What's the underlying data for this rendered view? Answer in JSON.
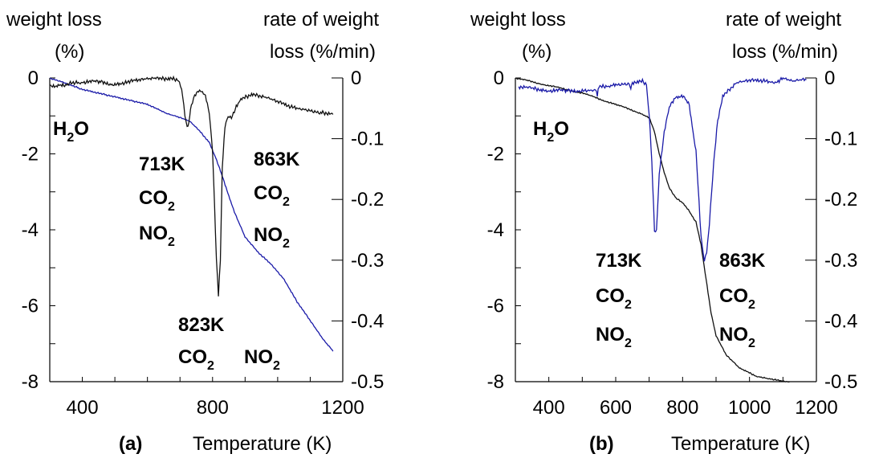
{
  "chart_data": [
    {
      "panel": "(a)",
      "type": "line",
      "xlabel": "Temperature (K)",
      "ylabel_left": [
        "weight loss",
        "(%)"
      ],
      "ylabel_right": [
        "rate of weight",
        "loss (%/min)"
      ],
      "xlim": [
        300,
        1200
      ],
      "xticks": [
        400,
        800,
        1200
      ],
      "ylim_left": [
        -8,
        0
      ],
      "yticks_left": [
        0,
        -2,
        -4,
        -6,
        -8
      ],
      "ylim_right": [
        -0.5,
        0
      ],
      "yticks_right": [
        "0",
        "-0.1",
        "-0.2",
        "-0.3",
        "-0.4",
        "-0.5"
      ],
      "series": [
        {
          "axis": "left",
          "color": "#1a1aa8",
          "points": [
            [
              300,
              0
            ],
            [
              340,
              -0.1
            ],
            [
              400,
              -0.3
            ],
            [
              500,
              -0.5
            ],
            [
              600,
              -0.7
            ],
            [
              660,
              -0.95
            ],
            [
              700,
              -1.05
            ],
            [
              730,
              -1.15
            ],
            [
              760,
              -1.4
            ],
            [
              790,
              -1.7
            ],
            [
              810,
              -2.1
            ],
            [
              830,
              -2.6
            ],
            [
              850,
              -3.1
            ],
            [
              870,
              -3.6
            ],
            [
              900,
              -4.2
            ],
            [
              940,
              -4.6
            ],
            [
              980,
              -4.9
            ],
            [
              1020,
              -5.3
            ],
            [
              1060,
              -5.9
            ],
            [
              1100,
              -6.4
            ],
            [
              1140,
              -6.9
            ],
            [
              1170,
              -7.2
            ]
          ]
        },
        {
          "axis": "right",
          "color": "#111111",
          "points": [
            [
              300,
              -0.01
            ],
            [
              320,
              -0.015
            ],
            [
              340,
              -0.012
            ],
            [
              360,
              -0.008
            ],
            [
              400,
              -0.006
            ],
            [
              450,
              -0.007
            ],
            [
              500,
              -0.01
            ],
            [
              560,
              -0.005
            ],
            [
              620,
              -0.002
            ],
            [
              680,
              -0.001
            ],
            [
              695,
              -0.003
            ],
            [
              705,
              -0.02
            ],
            [
              715,
              -0.06
            ],
            [
              722,
              -0.08
            ],
            [
              727,
              -0.075
            ],
            [
              735,
              -0.045
            ],
            [
              745,
              -0.03
            ],
            [
              760,
              -0.022
            ],
            [
              778,
              -0.03
            ],
            [
              790,
              -0.06
            ],
            [
              800,
              -0.12
            ],
            [
              812,
              -0.3
            ],
            [
              818,
              -0.36
            ],
            [
              824,
              -0.3
            ],
            [
              830,
              -0.15
            ],
            [
              838,
              -0.08
            ],
            [
              848,
              -0.065
            ],
            [
              858,
              -0.065
            ],
            [
              870,
              -0.05
            ],
            [
              890,
              -0.035
            ],
            [
              920,
              -0.027
            ],
            [
              960,
              -0.033
            ],
            [
              1000,
              -0.04
            ],
            [
              1040,
              -0.047
            ],
            [
              1080,
              -0.05
            ],
            [
              1120,
              -0.055
            ],
            [
              1160,
              -0.06
            ],
            [
              1170,
              -0.06
            ]
          ]
        }
      ],
      "annotations": [
        {
          "id": "h2o",
          "lines": [
            "H",
            "2",
            "O"
          ]
        },
        {
          "id": "peak713",
          "lines": [
            "713K",
            "CO2",
            "NO2"
          ]
        },
        {
          "id": "peak863",
          "lines": [
            "863K",
            "CO2",
            "NO2"
          ]
        },
        {
          "id": "peak823",
          "lines": [
            "823K",
            "CO2 NO2"
          ]
        }
      ]
    },
    {
      "panel": "(b)",
      "type": "line",
      "xlabel": "Temperature (K)",
      "ylabel_left": [
        "weight loss",
        "(%)"
      ],
      "ylabel_right": [
        "rate of weight",
        "loss (%/min)"
      ],
      "xlim": [
        300,
        1200
      ],
      "xticks": [
        400,
        600,
        800,
        1000,
        1200
      ],
      "ylim_left": [
        -8,
        0
      ],
      "yticks_left": [
        0,
        -2,
        -4,
        -6,
        -8
      ],
      "ylim_right": [
        -0.5,
        0
      ],
      "yticks_right": [
        "0",
        "-0.1",
        "-0.2",
        "-0.3",
        "-0.4",
        "-0.5"
      ],
      "series": [
        {
          "axis": "left",
          "color": "#111111",
          "points": [
            [
              300,
              0
            ],
            [
              350,
              -0.1
            ],
            [
              400,
              -0.2
            ],
            [
              450,
              -0.3
            ],
            [
              500,
              -0.4
            ],
            [
              550,
              -0.55
            ],
            [
              600,
              -0.7
            ],
            [
              650,
              -0.85
            ],
            [
              680,
              -0.95
            ],
            [
              700,
              -1.05
            ],
            [
              715,
              -1.4
            ],
            [
              730,
              -2.0
            ],
            [
              745,
              -2.5
            ],
            [
              760,
              -2.9
            ],
            [
              780,
              -3.15
            ],
            [
              800,
              -3.3
            ],
            [
              820,
              -3.5
            ],
            [
              840,
              -3.8
            ],
            [
              855,
              -4.4
            ],
            [
              870,
              -5.3
            ],
            [
              885,
              -6.2
            ],
            [
              900,
              -6.8
            ],
            [
              930,
              -7.3
            ],
            [
              970,
              -7.65
            ],
            [
              1020,
              -7.85
            ],
            [
              1080,
              -7.95
            ],
            [
              1120,
              -8.0
            ]
          ]
        },
        {
          "axis": "right",
          "color": "#1a1aa8",
          "points": [
            [
              310,
              -0.015
            ],
            [
              350,
              -0.018
            ],
            [
              400,
              -0.02
            ],
            [
              450,
              -0.022
            ],
            [
              500,
              -0.02
            ],
            [
              540,
              -0.018
            ],
            [
              545,
              -0.028
            ],
            [
              550,
              -0.015
            ],
            [
              600,
              -0.01
            ],
            [
              640,
              -0.008
            ],
            [
              645,
              -0.02
            ],
            [
              650,
              -0.008
            ],
            [
              680,
              -0.005
            ],
            [
              692,
              -0.01
            ],
            [
              700,
              -0.06
            ],
            [
              708,
              -0.14
            ],
            [
              716,
              -0.25
            ],
            [
              722,
              -0.25
            ],
            [
              730,
              -0.16
            ],
            [
              745,
              -0.09
            ],
            [
              760,
              -0.05
            ],
            [
              780,
              -0.03
            ],
            [
              800,
              -0.03
            ],
            [
              820,
              -0.045
            ],
            [
              840,
              -0.12
            ],
            [
              855,
              -0.26
            ],
            [
              865,
              -0.3
            ],
            [
              872,
              -0.29
            ],
            [
              880,
              -0.24
            ],
            [
              893,
              -0.14
            ],
            [
              905,
              -0.07
            ],
            [
              920,
              -0.03
            ],
            [
              960,
              -0.01
            ],
            [
              1000,
              -0.005
            ],
            [
              1040,
              -0.004
            ],
            [
              1080,
              -0.006
            ],
            [
              1100,
              -0.002
            ],
            [
              1130,
              -0.007
            ],
            [
              1170,
              -0.003
            ]
          ]
        }
      ],
      "annotations": [
        {
          "id": "h2o",
          "lines": [
            "H",
            "2",
            "O"
          ]
        },
        {
          "id": "peak713",
          "lines": [
            "713K",
            "CO2",
            "NO2"
          ]
        },
        {
          "id": "peak863",
          "lines": [
            "863K",
            "CO2",
            "NO2"
          ]
        }
      ]
    }
  ],
  "text": {
    "a": {
      "wl1": "weight loss",
      "wl2": "(%)",
      "rw1": "rate of weight",
      "rw2": "loss (%/min)",
      "panel": "(a)",
      "xlabel": "Temperature (K)",
      "h2o_h": "H",
      "h2o_2": "2",
      "h2o_o": "O",
      "k713": "713K",
      "k863": "863K",
      "k823": "823K",
      "co": "CO",
      "no": "NO",
      "sub2": "2"
    },
    "b": {
      "wl1": "weight loss",
      "wl2": "(%)",
      "rw1": "rate of weight",
      "rw2": "loss (%/min)",
      "panel": "(b)",
      "xlabel": "Temperature (K)",
      "h2o_h": "H",
      "h2o_2": "2",
      "h2o_o": "O",
      "k713": "713K",
      "k863": "863K",
      "co": "CO",
      "no": "NO",
      "sub2": "2"
    }
  }
}
